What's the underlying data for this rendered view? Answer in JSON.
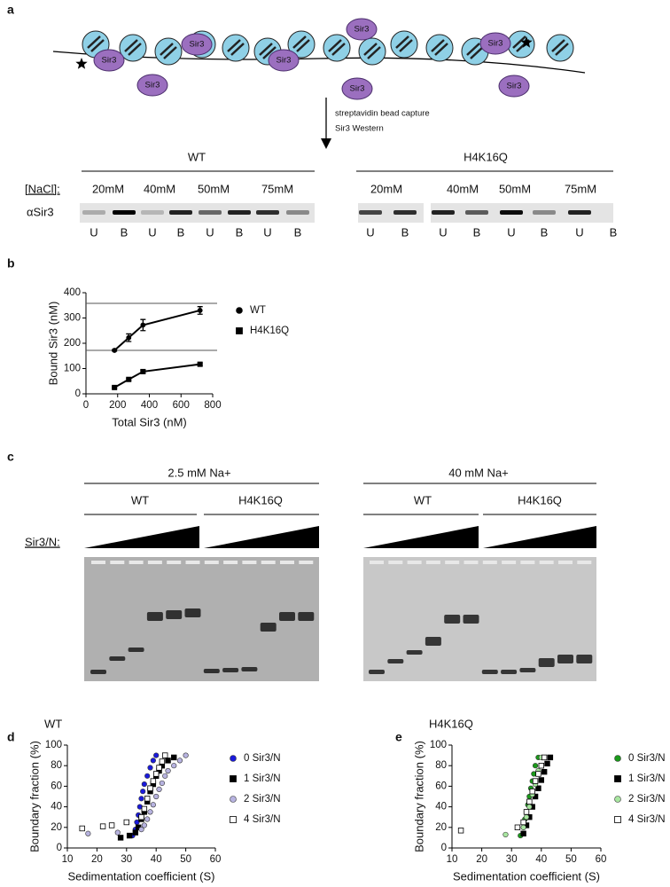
{
  "panel_labels": [
    "a",
    "b",
    "c",
    "d",
    "e"
  ],
  "panel_a": {
    "sir3_labels": [
      "Sir3",
      "Sir3",
      "Sir3",
      "Sir3",
      "Sir3",
      "Sir3",
      "Sir3",
      "Sir3"
    ],
    "arrow_text": [
      "streptavidin bead capture",
      "Sir3 Western"
    ],
    "salt_label": "[NaCl]:",
    "antibody": "αSir3",
    "groups": [
      {
        "name": "WT",
        "concentrations": [
          "20mM",
          "40mM",
          "50mM",
          "75mM"
        ],
        "lanes": [
          "U",
          "B",
          "U",
          "B",
          "U",
          "B",
          "U",
          "B"
        ]
      },
      {
        "name": "H4K16Q",
        "concentrations": [
          "20mM",
          "40mM",
          "50mM",
          "75mM"
        ],
        "lanes": [
          "U",
          "B",
          "U",
          "B",
          "U",
          "B",
          "U",
          "B"
        ]
      }
    ]
  },
  "panel_c": {
    "titration_label": "Sir3/N:",
    "conditions": [
      {
        "name": "2.5 mM Na+",
        "groups": [
          "WT",
          "H4K16Q"
        ]
      },
      {
        "name": "40 mM Na+",
        "groups": [
          "WT",
          "H4K16Q"
        ]
      }
    ]
  },
  "chart_data": [
    {
      "type": "line",
      "xlabel": "Total Sir3 (nM)",
      "ylabel": "Bound Sir3 (nM)",
      "xlim": [
        0,
        800
      ],
      "xticks": [
        0,
        200,
        400,
        600,
        800
      ],
      "ylim": [
        0,
        400
      ],
      "yticks": [
        0,
        100,
        200,
        300,
        400
      ],
      "hlines": [
        358,
        172
      ],
      "series": [
        {
          "name": "WT",
          "color": "#000000",
          "marker": "circle",
          "x": [
            180,
            270,
            360,
            720
          ],
          "values": [
            172,
            222,
            272,
            330
          ],
          "errors": [
            3,
            15,
            22,
            15
          ]
        },
        {
          "name": "H4K16Q",
          "color": "#000000",
          "marker": "square",
          "x": [
            180,
            270,
            360,
            720
          ],
          "values": [
            25,
            57,
            88,
            117
          ],
          "errors": [
            3,
            4,
            6,
            5
          ]
        }
      ]
    },
    {
      "type": "scatter",
      "title": "WT",
      "xlabel": "Sedimentation coefficient (S)",
      "ylabel": "Boundary fraction (%)",
      "xlim": [
        10,
        60
      ],
      "xticks": [
        10,
        20,
        30,
        40,
        50,
        60
      ],
      "ylim": [
        0,
        100
      ],
      "yticks": [
        0,
        20,
        40,
        60,
        80,
        100
      ],
      "series": [
        {
          "name": "0 Sir3/N",
          "color": "#1a1adb",
          "marker": "circle",
          "x": [
            32,
            33,
            33.5,
            34,
            34.5,
            35,
            35.5,
            36,
            37,
            38,
            39,
            40
          ],
          "values": [
            12,
            18,
            25,
            32,
            40,
            48,
            55,
            62,
            70,
            78,
            85,
            90
          ]
        },
        {
          "name": "1 Sir3/N",
          "color": "#000000",
          "marker": "square",
          "x": [
            28,
            31,
            33,
            34,
            35,
            36,
            37,
            38,
            39,
            40,
            41,
            42,
            44,
            46
          ],
          "values": [
            10,
            12,
            15,
            20,
            28,
            35,
            45,
            55,
            62,
            70,
            75,
            80,
            85,
            88
          ]
        },
        {
          "name": "2 Sir3/N",
          "color": "#b7b3e0",
          "marker": "circle",
          "x": [
            17,
            27,
            35,
            36,
            37,
            38,
            39,
            40,
            41,
            42,
            43,
            44,
            46,
            48,
            50
          ],
          "values": [
            14,
            15,
            18,
            22,
            28,
            35,
            42,
            50,
            57,
            63,
            70,
            75,
            80,
            85,
            90
          ]
        },
        {
          "name": "4 Sir3/N",
          "color": "#ffffff",
          "marker": "square",
          "x": [
            15,
            22,
            25,
            30,
            35,
            36,
            37,
            38,
            39,
            40,
            41,
            42,
            43
          ],
          "values": [
            19,
            21,
            22,
            25,
            30,
            38,
            48,
            58,
            65,
            72,
            78,
            84,
            90
          ]
        }
      ]
    },
    {
      "type": "scatter",
      "title": "H4K16Q",
      "xlabel": "Sedimentation coefficient (S)",
      "ylabel": "Boundary fraction (%)",
      "xlim": [
        10,
        60
      ],
      "xticks": [
        10,
        20,
        30,
        40,
        50,
        60
      ],
      "ylim": [
        0,
        100
      ],
      "yticks": [
        0,
        20,
        40,
        60,
        80,
        100
      ],
      "series": [
        {
          "name": "0 Sir3/N",
          "color": "#1a9a1a",
          "marker": "circle",
          "x": [
            33,
            34,
            34.5,
            35,
            35.5,
            36,
            36.5,
            37,
            37.5,
            38,
            39
          ],
          "values": [
            12,
            20,
            28,
            35,
            42,
            50,
            58,
            65,
            72,
            80,
            88
          ]
        },
        {
          "name": "1 Sir3/N",
          "color": "#000000",
          "marker": "square",
          "x": [
            34,
            35,
            36,
            37,
            38,
            39,
            40,
            41,
            42,
            43
          ],
          "values": [
            14,
            22,
            30,
            40,
            50,
            58,
            66,
            74,
            82,
            88
          ]
        },
        {
          "name": "2 Sir3/N",
          "color": "#a8e6a0",
          "marker": "circle",
          "x": [
            28,
            34,
            35,
            36,
            37,
            38,
            39,
            40
          ],
          "values": [
            13,
            20,
            30,
            40,
            52,
            62,
            75,
            88
          ]
        },
        {
          "name": "4 Sir3/N",
          "color": "#ffffff",
          "marker": "square",
          "x": [
            13,
            32,
            34,
            35,
            36,
            37,
            38,
            39,
            40,
            41
          ],
          "values": [
            17,
            20,
            25,
            35,
            45,
            55,
            65,
            72,
            80,
            88
          ]
        }
      ]
    }
  ]
}
